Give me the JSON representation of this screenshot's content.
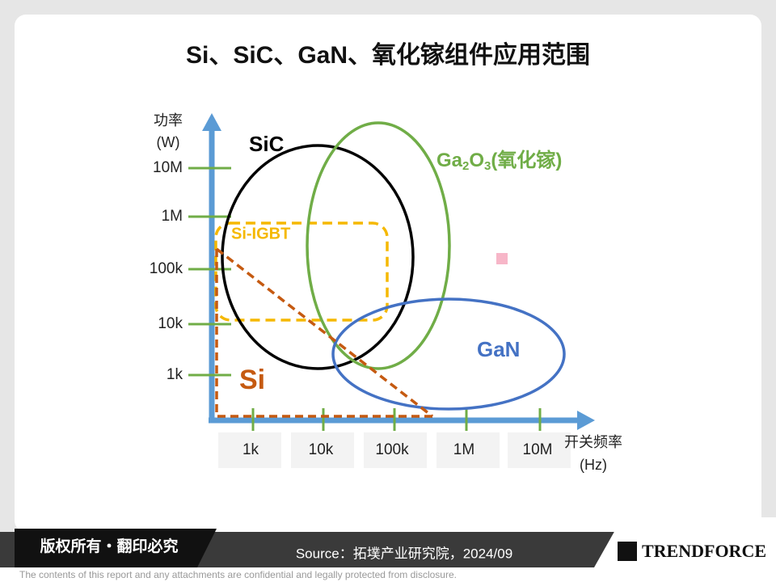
{
  "header": {
    "title": "Si、SiC、GaN、氧化镓组件应用范围"
  },
  "y_axis": {
    "label_lines": [
      "功率",
      "(W)"
    ],
    "ticks": [
      "10M",
      "1M",
      "100k",
      "10k",
      "1k"
    ]
  },
  "x_axis": {
    "label_lines": [
      "开关频率",
      "(Hz)"
    ],
    "ticks": [
      "1k",
      "10k",
      "100k",
      "1M",
      "10M"
    ]
  },
  "regions": {
    "sic": "SiC",
    "ga2o3": [
      "Ga",
      "2",
      "O",
      "3",
      "(氧化镓)"
    ],
    "gan": "GaN",
    "si_igbt": "Si-IGBT",
    "si": "Si"
  },
  "footer": {
    "rights": "版权所有・翻印必究",
    "source": "Source：拓墣产业研究院，2024/09",
    "brand": "TRENDFORCE",
    "disclaimer": "The contents of this report and any attachments are confidential and legally protected from disclosure."
  }
}
